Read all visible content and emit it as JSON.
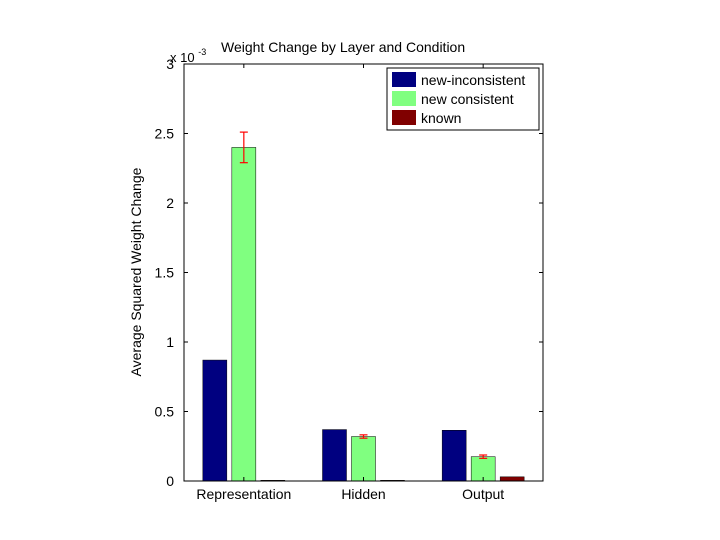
{
  "chart_data": {
    "type": "bar",
    "title": "Weight Change by Layer and Condition",
    "xlabel": "",
    "ylabel": "Average Squared Weight Change",
    "y_scale_label": "x 10",
    "y_scale_exponent": "-3",
    "ylim": [
      0,
      3
    ],
    "yticks": [
      0,
      0.5,
      1,
      1.5,
      2,
      2.5,
      3
    ],
    "ytick_labels": [
      "0",
      "0.5",
      "1",
      "1.5",
      "2",
      "2.5",
      "3"
    ],
    "categories": [
      "Representation",
      "Hidden",
      "Output"
    ],
    "legend_position": "top-right",
    "series": [
      {
        "name": "new-inconsistent",
        "color": "#000080",
        "values": [
          0.87,
          0.37,
          0.365
        ],
        "errors": [
          null,
          null,
          null
        ]
      },
      {
        "name": "new consistent",
        "color": "#80ff80",
        "values": [
          2.4,
          0.32,
          0.175
        ],
        "errors": [
          0.11,
          0.012,
          0.012
        ]
      },
      {
        "name": "known",
        "color": "#800000",
        "values": [
          0.005,
          0.005,
          0.03
        ],
        "errors": [
          null,
          null,
          null
        ]
      }
    ],
    "error_bar_color": "#ff0000"
  }
}
